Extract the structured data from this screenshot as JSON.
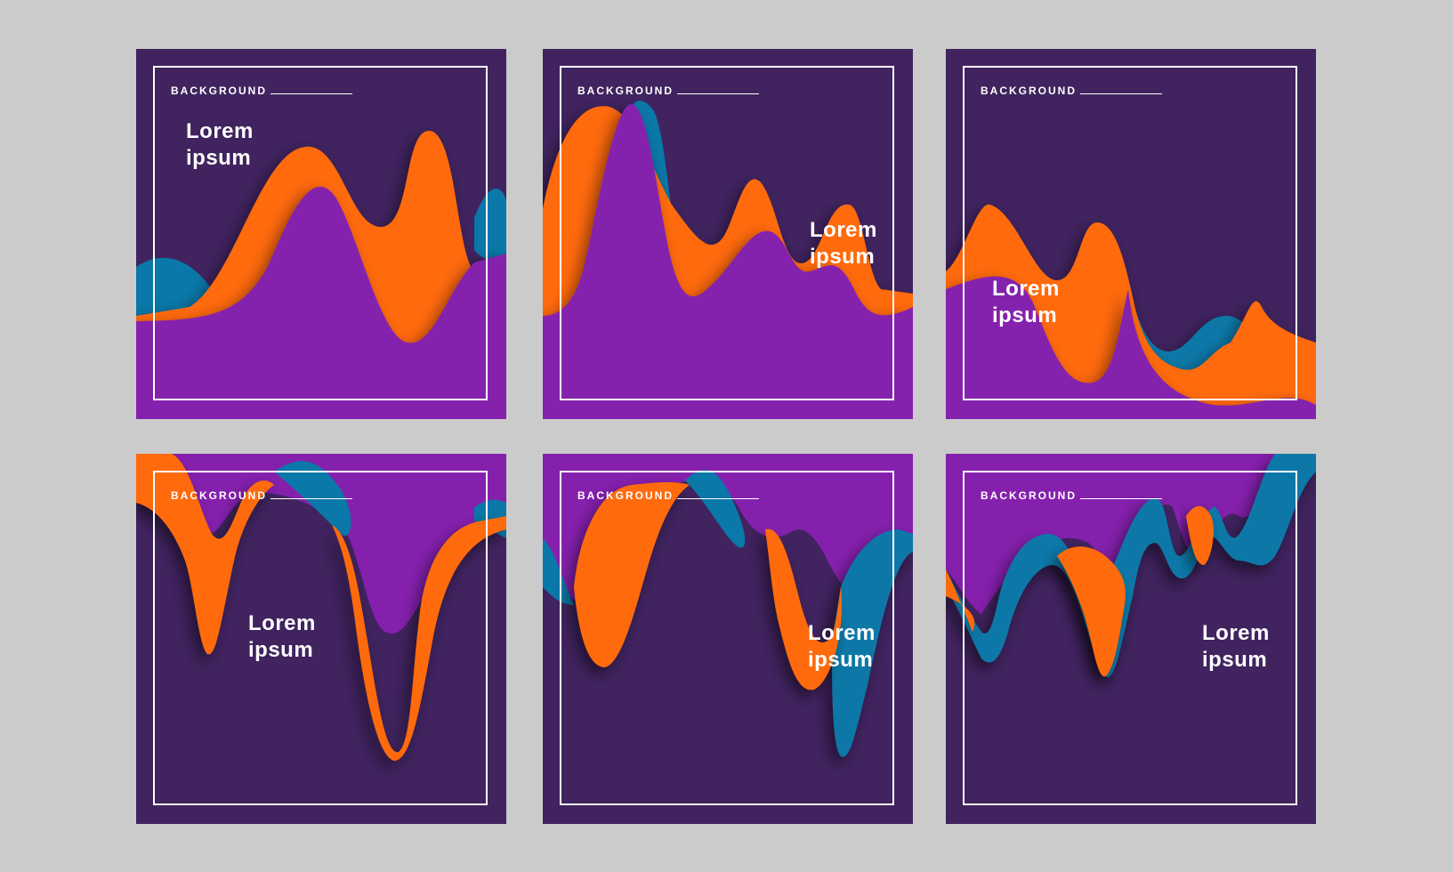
{
  "colors": {
    "page_bg": "#cbcbcb",
    "dark_purple": "#40235f",
    "violet": "#8520ad",
    "orange": "#ff6b07",
    "blue": "#0a78a8",
    "white": "#ffffff"
  },
  "cards": [
    {
      "label": "BACKGROUND",
      "title_line1": "Lorem",
      "title_line2": "ipsum"
    },
    {
      "label": "BACKGROUND",
      "title_line1": "Lorem",
      "title_line2": "ipsum"
    },
    {
      "label": "BACKGROUND",
      "title_line1": "Lorem",
      "title_line2": "ipsum"
    },
    {
      "label": "BACKGROUND",
      "title_line1": "Lorem",
      "title_line2": "ipsum"
    },
    {
      "label": "BACKGROUND",
      "title_line1": "Lorem",
      "title_line2": "ipsum"
    },
    {
      "label": "BACKGROUND",
      "title_line1": "Lorem",
      "title_line2": "ipsum"
    }
  ]
}
